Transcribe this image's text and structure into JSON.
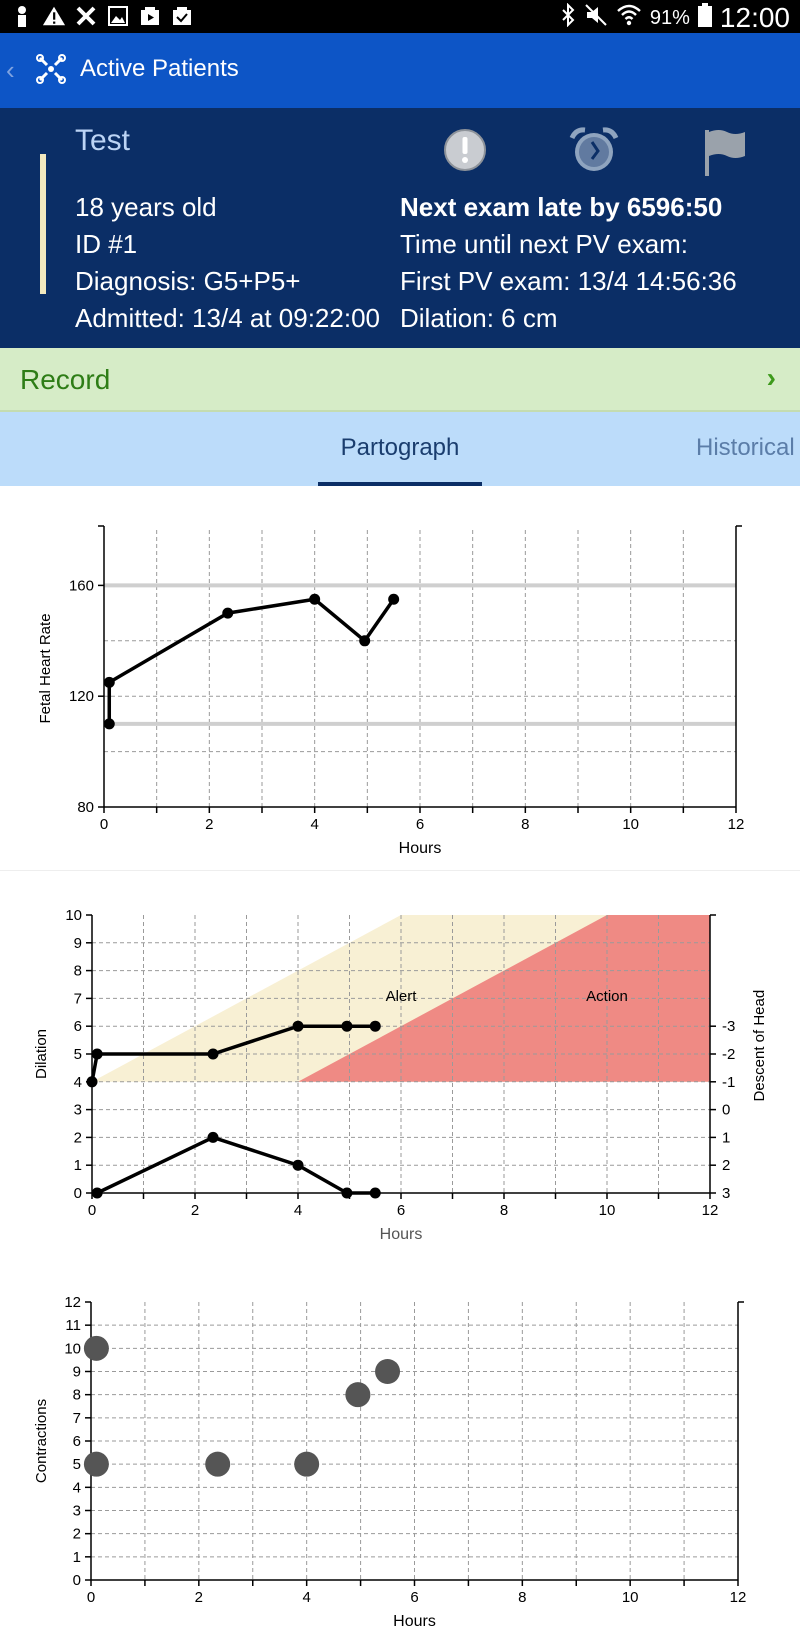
{
  "status_bar": {
    "battery": "91%",
    "time": "12:00"
  },
  "app_bar": {
    "title": "Active Patients"
  },
  "patient": {
    "name": "Test",
    "age": "18 years old",
    "id": "ID #1",
    "diagnosis": "Diagnosis: G5+P5+",
    "admitted": "Admitted: 13/4 at 09:22:00",
    "next_exam": "Next exam late by 6596:50",
    "time_until": "Time until next PV exam:",
    "first_pv": "First PV exam: 13/4 14:56:36",
    "dilation": "Dilation: 6 cm"
  },
  "record": {
    "label": "Record"
  },
  "tabs": [
    {
      "label": "Partograph"
    },
    {
      "label": "Historical"
    }
  ],
  "chart_data": [
    {
      "type": "line",
      "ylabel": "Fetal Heart Rate",
      "xlabel": "Hours",
      "xlim": [
        0,
        12
      ],
      "ylim": [
        80,
        180
      ],
      "yticks": [
        80,
        120,
        160
      ],
      "xticks": [
        0,
        2,
        4,
        6,
        8,
        10,
        12
      ],
      "reference_lines": [
        110,
        160
      ],
      "x": [
        0.1,
        0.1,
        2.35,
        4.0,
        4.95,
        5.5
      ],
      "y": [
        110,
        125,
        150,
        155,
        140,
        155
      ]
    },
    {
      "type": "line",
      "ylabel": "Dilation",
      "ylabel_right": "Descent of Head",
      "xlabel": "Hours",
      "xlim": [
        0,
        12
      ],
      "ylim": [
        0,
        10
      ],
      "yticks": [
        0,
        1,
        2,
        3,
        4,
        5,
        6,
        7,
        8,
        9,
        10
      ],
      "yticks_right": [
        "3",
        "2",
        "1",
        "0",
        "-1",
        "-2",
        "-3"
      ],
      "xticks": [
        0,
        2,
        4,
        6,
        8,
        10,
        12
      ],
      "zones": [
        {
          "label": "Alert",
          "color": "#f8f0d4"
        },
        {
          "label": "Action",
          "color": "#ef8a84"
        }
      ],
      "series": [
        {
          "x": [
            0,
            0.1,
            2.35,
            4.0,
            4.95,
            5.5
          ],
          "y": [
            4,
            5,
            5,
            6,
            6,
            6
          ]
        },
        {
          "x": [
            0.1,
            2.35,
            4.0,
            4.95,
            5.5
          ],
          "y": [
            0,
            2,
            1,
            0,
            0
          ]
        }
      ]
    },
    {
      "type": "scatter",
      "ylabel": "Contractions",
      "xlabel": "Hours",
      "xlim": [
        0,
        12
      ],
      "ylim": [
        0,
        12
      ],
      "yticks": [
        0,
        1,
        2,
        3,
        4,
        5,
        6,
        7,
        8,
        9,
        10,
        11,
        12
      ],
      "xticks": [
        0,
        2,
        4,
        6,
        8,
        10,
        12
      ],
      "x": [
        0.1,
        0.1,
        2.35,
        4.0,
        4.95,
        5.5
      ],
      "y": [
        10,
        5,
        5,
        5,
        8,
        9
      ]
    }
  ]
}
